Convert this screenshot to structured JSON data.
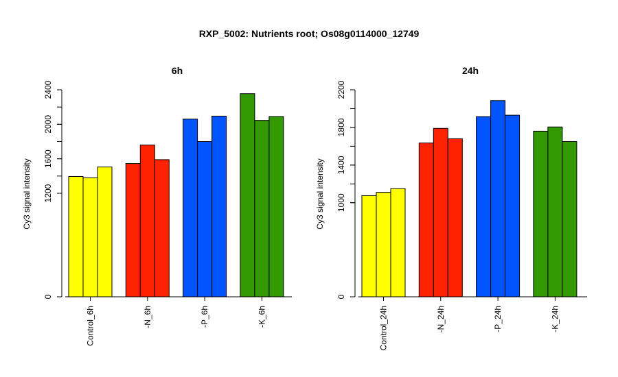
{
  "figure": {
    "title": "RXP_5002: Nutrients root; Os08g0114000_12749"
  },
  "chart_data": [
    {
      "type": "bar",
      "title": "6h",
      "xlabel": "",
      "ylabel": "Cy3 signal intensity",
      "ylim": [
        0,
        2400
      ],
      "yticks": [
        0,
        1200,
        1600,
        2000,
        2400
      ],
      "grid": false,
      "categories": [
        "Control_6h",
        "-N_6h",
        "-P_6h",
        "-K_6h"
      ],
      "group_colors": [
        "#ffff00",
        "#ff2200",
        "#0055ff",
        "#339900"
      ],
      "groups": [
        {
          "label": "Control_6h",
          "values": [
            1395,
            1380,
            1505
          ]
        },
        {
          "label": "-N_6h",
          "values": [
            1545,
            1760,
            1590
          ]
        },
        {
          "label": "-P_6h",
          "values": [
            2060,
            1800,
            2095
          ]
        },
        {
          "label": "-K_6h",
          "values": [
            2355,
            2045,
            2090
          ]
        }
      ]
    },
    {
      "type": "bar",
      "title": "24h",
      "xlabel": "",
      "ylabel": "Cy3 signal intensity",
      "ylim": [
        0,
        2200
      ],
      "yticks": [
        0,
        1000,
        1400,
        1800,
        2200
      ],
      "grid": false,
      "categories": [
        "Control_24h",
        "-N_24h",
        "-P_24h",
        "-K_24h"
      ],
      "group_colors": [
        "#ffff00",
        "#ff2200",
        "#0055ff",
        "#339900"
      ],
      "groups": [
        {
          "label": "Control_24h",
          "values": [
            1075,
            1110,
            1150
          ]
        },
        {
          "label": "-N_24h",
          "values": [
            1635,
            1790,
            1680
          ]
        },
        {
          "label": "-P_24h",
          "values": [
            1915,
            2085,
            1930
          ]
        },
        {
          "label": "-K_24h",
          "values": [
            1760,
            1805,
            1650
          ]
        }
      ]
    }
  ]
}
